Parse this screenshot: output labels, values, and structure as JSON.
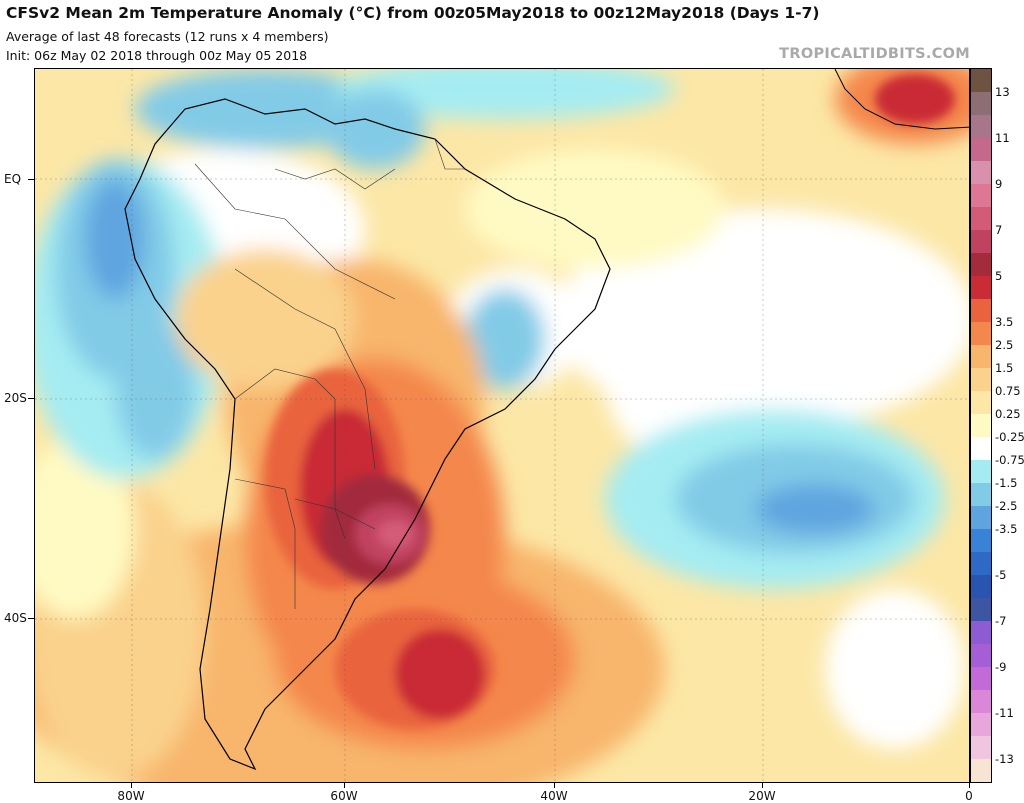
{
  "header": {
    "title": "CFSv2 Mean 2m Temperature Anomaly (°C) from 00z05May2018 to 00z12May2018 (Days 1-7)",
    "subtitle": "Average of last 48 forecasts (12 runs x 4 members)",
    "init": "Init: 06z May 02 2018 through 00z May 05 2018",
    "brand": "TROPICALTIDBITS.COM"
  },
  "map": {
    "region": "South America and South Atlantic",
    "lon_labels": [
      "80W",
      "60W",
      "40W",
      "20W",
      "0"
    ],
    "lat_labels": [
      "EQ",
      "20S",
      "40S"
    ]
  },
  "legend": {
    "colors": [
      "#f8e4d2",
      "#f0c5df",
      "#e7a7dc",
      "#da87d9",
      "#c26ad8",
      "#a65ed6",
      "#8e5bd3",
      "#3d55a3",
      "#2954b0",
      "#2d69c5",
      "#3983d6",
      "#5ea5e0",
      "#82cbe7",
      "#a5ecf2",
      "#ffffff",
      "#fffac3",
      "#fce7a6",
      "#fad28c",
      "#f8b56c",
      "#f4874b",
      "#e9633e",
      "#c92c34",
      "#a32b3c",
      "#c14260",
      "#d45b78",
      "#de7796",
      "#d890ac",
      "#c4698c",
      "#a7768a",
      "#8d6e74",
      "#6e5440"
    ],
    "labels": [
      "-13",
      "-11",
      "-9",
      "-7",
      "-5",
      "-3.5",
      "-2.5",
      "-1.5",
      "-0.75",
      "-0.25",
      "0.25",
      "0.75",
      "1.5",
      "2.5",
      "3.5",
      "5",
      "7",
      "9",
      "11",
      "13"
    ]
  }
}
